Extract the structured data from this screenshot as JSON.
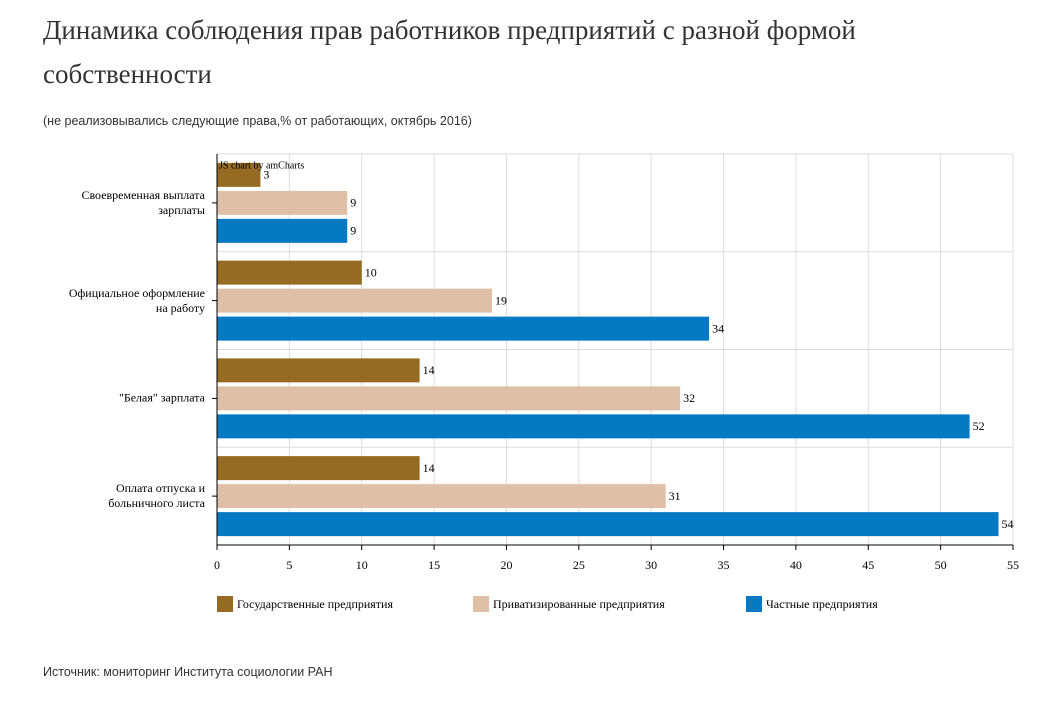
{
  "title": "Динамика соблюдения прав работников предприятий с разной формой собственности",
  "subtitle": "(не реализовывались следующие права,% от работающих, октябрь 2016)",
  "source": "Источник: мониторинг Института социологии РАН",
  "chart_data": {
    "type": "hbar",
    "credit": "JS chart by amCharts",
    "categories": [
      "Своевременная выплата зарплаты",
      "Официальное оформление на работу",
      "\"Белая\" зарплата",
      "Оплата отпуска и больничного листа"
    ],
    "series": [
      {
        "name": "Государственные предприятия",
        "color": "#956b23",
        "values": [
          3,
          10,
          14,
          14
        ]
      },
      {
        "name": "Приватизированные предприятия",
        "color": "#dfc0a6",
        "values": [
          9,
          19,
          32,
          31
        ]
      },
      {
        "name": "Частные предприятия",
        "color": "#0679c3",
        "values": [
          9,
          34,
          52,
          54
        ]
      }
    ],
    "xlim": [
      0,
      55
    ],
    "xticks": [
      0,
      5,
      10,
      15,
      20,
      25,
      30,
      35,
      40,
      45,
      50,
      55
    ],
    "grid": true
  }
}
